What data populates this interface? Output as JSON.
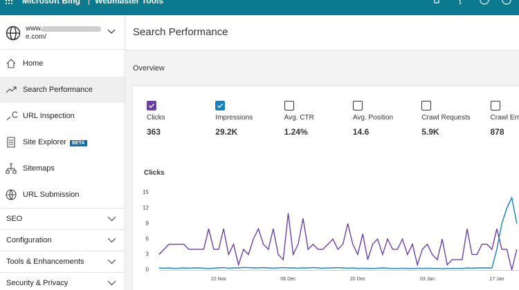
{
  "header": {
    "brand": "Microsoft Bing",
    "product": "Webmaster Tools"
  },
  "site": {
    "line1": "www.",
    "line2": "e.com/"
  },
  "nav": [
    {
      "label": "Home",
      "icon": "home"
    },
    {
      "label": "Search Performance",
      "icon": "trend",
      "selected": true
    },
    {
      "label": "URL Inspection",
      "icon": "search"
    },
    {
      "label": "Site Explorer",
      "icon": "doc",
      "badge": "BETA"
    },
    {
      "label": "Sitemaps",
      "icon": "tree"
    },
    {
      "label": "URL Submission",
      "icon": "globe"
    }
  ],
  "sections": [
    "SEO",
    "Configuration",
    "Tools & Enhancements",
    "Security & Privacy"
  ],
  "page_title": "Search Performance",
  "overview": "Overview",
  "metrics": [
    {
      "label": "Clicks",
      "value": "363",
      "checked": true,
      "color": "#6b3fa0"
    },
    {
      "label": "Impressions",
      "value": "29.2K",
      "checked": true,
      "color": "#1a7fb5"
    },
    {
      "label": "Avg. CTR",
      "value": "1.24%",
      "checked": false
    },
    {
      "label": "Avg. Position",
      "value": "14.6",
      "checked": false
    },
    {
      "label": "Crawl Requests",
      "value": "5.9K",
      "checked": false
    },
    {
      "label": "Crawl Errors",
      "value": "878",
      "checked": false
    }
  ],
  "chart_data": {
    "type": "line",
    "title": "Clicks",
    "categories": [
      null,
      null,
      null,
      null,
      null,
      null,
      null,
      null,
      null,
      null,
      null,
      null,
      "22 Nov",
      null,
      null,
      null,
      null,
      null,
      null,
      null,
      null,
      null,
      null,
      null,
      null,
      null,
      "06 Dec",
      null,
      null,
      null,
      null,
      null,
      null,
      null,
      null,
      null,
      null,
      null,
      null,
      null,
      "20 Dec",
      null,
      null,
      null,
      null,
      null,
      null,
      null,
      null,
      null,
      null,
      null,
      null,
      null,
      "03 Jan",
      null,
      null,
      null,
      null,
      null,
      null,
      null,
      null,
      null,
      null,
      null,
      null,
      null,
      "17 Jan",
      null,
      null,
      null,
      null
    ],
    "series": [
      {
        "name": "Clicks",
        "color": "#6b3fa0",
        "values": [
          3,
          4,
          5,
          5,
          5,
          5,
          4,
          4,
          4,
          4,
          8,
          4,
          4,
          8,
          3,
          5,
          1,
          4,
          3,
          6,
          8,
          5,
          4,
          8,
          3,
          2,
          11,
          3,
          5,
          10,
          4,
          5,
          4,
          4,
          5,
          6,
          4,
          5,
          9,
          5,
          3,
          7,
          2,
          5,
          6,
          3,
          6,
          4,
          4,
          6,
          3,
          5,
          1,
          4,
          5,
          3,
          2,
          6,
          1,
          2,
          2,
          2,
          8,
          3,
          3,
          5,
          5,
          4,
          8,
          4,
          4,
          0,
          4
        ]
      },
      {
        "name": "Impressions",
        "color": "#1a7fb5",
        "axis": "y2",
        "values": [
          40,
          35,
          40,
          30,
          35,
          40,
          35,
          40,
          40,
          35,
          30,
          35,
          40,
          45,
          35,
          40,
          40,
          50,
          45,
          40,
          40,
          45,
          40,
          35,
          40,
          45,
          40,
          40,
          35,
          40,
          40,
          45,
          40,
          35,
          40,
          40,
          45,
          40,
          35,
          40,
          30,
          35,
          30,
          30,
          35,
          40,
          35,
          30,
          30,
          35,
          30,
          30,
          35,
          30,
          35,
          30,
          30,
          25,
          30,
          30,
          30,
          30,
          40,
          35,
          40,
          40,
          40,
          40,
          400,
          900,
          1200,
          1400,
          900
        ]
      }
    ],
    "ylim": [
      0,
      15
    ],
    "yticks": [
      0,
      3,
      6,
      9,
      12,
      15
    ],
    "y2lim": [
      0,
      1500
    ],
    "grid": false
  }
}
